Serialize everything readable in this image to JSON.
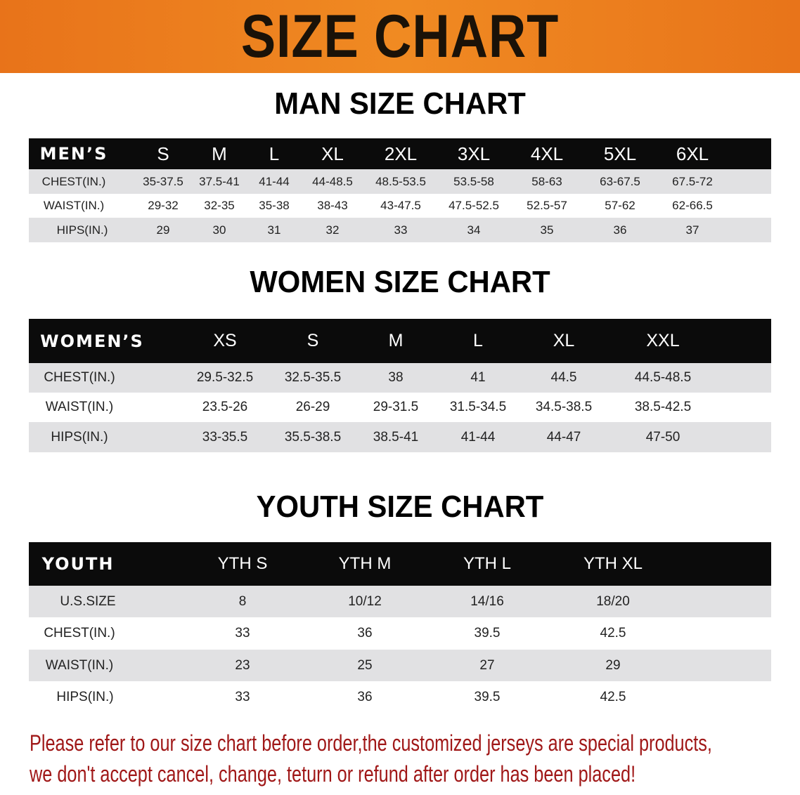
{
  "banner_title": "SIZE CHART",
  "men": {
    "title": "MAN SIZE CHART",
    "header": [
      "MEN’S",
      "S",
      "M",
      "L",
      "XL",
      "2XL",
      "3XL",
      "4XL",
      "5XL",
      "6XL"
    ],
    "rows": [
      [
        "CHEST(IN.)",
        "35-37.5",
        "37.5-41",
        "41-44",
        "44-48.5",
        "48.5-53.5",
        "53.5-58",
        "58-63",
        "63-67.5",
        "67.5-72"
      ],
      [
        "WAIST(IN.)",
        "29-32",
        "32-35",
        "35-38",
        "38-43",
        "43-47.5",
        "47.5-52.5",
        "52.5-57",
        "57-62",
        "62-66.5"
      ],
      [
        "HIPS(IN.)",
        "29",
        "30",
        "31",
        "32",
        "33",
        "34",
        "35",
        "36",
        "37"
      ]
    ]
  },
  "women": {
    "title": "WOMEN SIZE CHART",
    "header": [
      "WOMEN’S",
      "XS",
      "S",
      "M",
      "L",
      "XL",
      "XXL"
    ],
    "rows": [
      [
        "CHEST(IN.)",
        "29.5-32.5",
        "32.5-35.5",
        "38",
        "41",
        "44.5",
        "44.5-48.5"
      ],
      [
        "WAIST(IN.)",
        "23.5-26",
        "26-29",
        "29-31.5",
        "31.5-34.5",
        "34.5-38.5",
        "38.5-42.5"
      ],
      [
        "HIPS(IN.)",
        "33-35.5",
        "35.5-38.5",
        "38.5-41",
        "41-44",
        "44-47",
        "47-50"
      ]
    ]
  },
  "youth": {
    "title": "YOUTH SIZE CHART",
    "header": [
      "YOUTH",
      "YTH S",
      "YTH M",
      "YTH L",
      "YTH XL"
    ],
    "rows": [
      [
        "U.S.SIZE",
        "8",
        "10/12",
        "14/16",
        "18/20"
      ],
      [
        "CHEST(IN.)",
        "33",
        "36",
        "39.5",
        "42.5"
      ],
      [
        "WAIST(IN.)",
        "23",
        "25",
        "27",
        "29"
      ],
      [
        "HIPS(IN.)",
        "33",
        "36",
        "39.5",
        "42.5"
      ]
    ]
  },
  "notice": {
    "line1": "Please refer to our size chart before order,the customized jerseys are special products,",
    "line2": "we don't accept cancel, change, teturn or refund after order has been placed!"
  },
  "colors": {
    "banner": "#ee8020",
    "header_bg": "#0b0b0b",
    "row_gray": "#e1e1e3",
    "notice": "#a01818"
  }
}
